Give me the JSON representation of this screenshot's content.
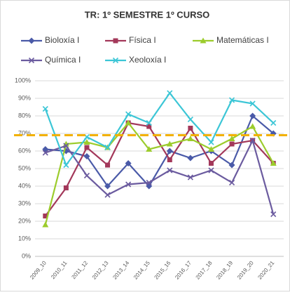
{
  "chart_data": {
    "type": "line",
    "title": "TR: 1º SEMESTRE 1º CURSO",
    "categories": [
      "2009_10",
      "2010_11",
      "2011_12",
      "2012_13",
      "2013_14",
      "2014_15",
      "2015_16",
      "2016_17",
      "2017_18",
      "2018_19",
      "2019_20",
      "2020_21"
    ],
    "series": [
      {
        "name": "Bioloxía I",
        "color": "#4a5aa8",
        "marker": "diamond",
        "values": [
          61,
          60,
          57,
          40,
          53,
          40,
          60,
          56,
          60,
          52,
          80,
          70
        ]
      },
      {
        "name": "Física I",
        "color": "#a3385a",
        "marker": "square",
        "values": [
          23,
          39,
          62,
          52,
          76,
          74,
          55,
          73,
          53,
          64,
          66,
          53
        ]
      },
      {
        "name": "Matemáticas I",
        "color": "#9ccc2c",
        "marker": "triangle",
        "values": [
          18,
          64,
          65,
          62,
          76,
          61,
          64,
          67,
          61,
          67,
          74,
          53
        ]
      },
      {
        "name": "Química I",
        "color": "#6b5b9f",
        "marker": "x",
        "values": [
          59,
          63,
          46,
          35,
          41,
          42,
          49,
          45,
          49,
          42,
          66,
          24
        ]
      },
      {
        "name": "Xeoloxía I",
        "color": "#3cc6d6",
        "marker": "x",
        "values": [
          84,
          52,
          68,
          62,
          81,
          76,
          93,
          78,
          65,
          89,
          87,
          76
        ]
      }
    ],
    "reference_line": {
      "value": 69,
      "color": "#f2b100"
    },
    "ylim": [
      0,
      100
    ],
    "yticks": [
      {
        "value": 0,
        "label": "0%"
      },
      {
        "value": 10,
        "label": "10%"
      },
      {
        "value": 20,
        "label": "20%"
      },
      {
        "value": 30,
        "label": "30%"
      },
      {
        "value": 40,
        "label": "40%"
      },
      {
        "value": 50,
        "label": "50%"
      },
      {
        "value": 60,
        "label": "60%"
      },
      {
        "value": 70,
        "label": "70%"
      },
      {
        "value": 80,
        "label": "80%"
      },
      {
        "value": 90,
        "label": "90%"
      },
      {
        "value": 100,
        "label": "100%"
      }
    ],
    "grid": true
  }
}
